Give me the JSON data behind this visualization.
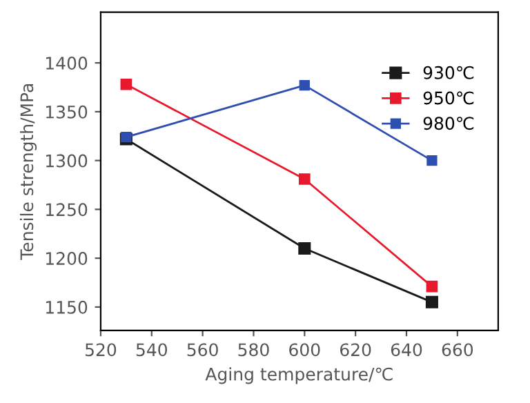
{
  "chart_data": {
    "type": "line",
    "xlabel": "Aging temperature/℃",
    "ylabel": "Tensile strength/MPa",
    "x": [
      530,
      600,
      650
    ],
    "series": [
      {
        "name": "930℃",
        "color": "#1a1a1a",
        "values": [
          1322,
          1210,
          1155
        ]
      },
      {
        "name": "950℃",
        "color": "#e8192c",
        "values": [
          1378,
          1281,
          1171
        ]
      },
      {
        "name": "980℃",
        "color": "#2e4fb0",
        "values": [
          1324,
          1377,
          1300
        ]
      }
    ],
    "xlim": [
      520,
      676
    ],
    "xticks": [
      520,
      540,
      560,
      580,
      600,
      620,
      640,
      660
    ],
    "ylim": [
      1126,
      1452
    ],
    "yticks": [
      1150,
      1200,
      1250,
      1300,
      1350,
      1400
    ],
    "marker": "square",
    "line_style": "solid",
    "legend": "top right",
    "grid": false
  }
}
